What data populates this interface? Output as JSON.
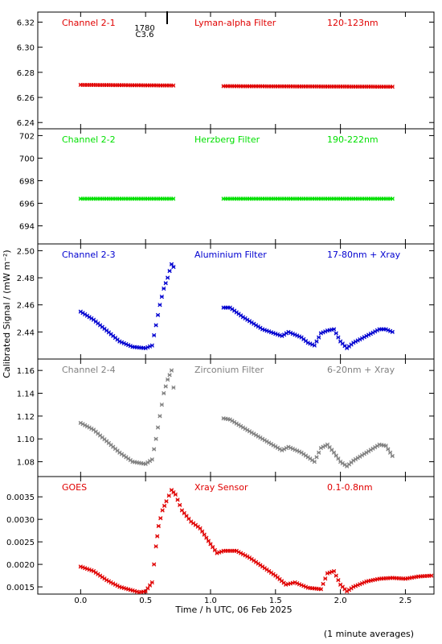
{
  "figure": {
    "ylabel": "Calibrated Signal / (mW m⁻²)",
    "xlabel": "Time / h UTC, 06 Feb 2025",
    "footnote": "(1 minute averages)",
    "marker_annotation": {
      "value": "1780",
      "sub": "C3.6",
      "x": 0.72
    },
    "xlim": [
      -0.33,
      2.72
    ],
    "xticks": [
      "0.0",
      "0.5",
      "1.0",
      "1.5",
      "2.0",
      "2.5"
    ]
  },
  "chart_data": [
    {
      "type": "scatter",
      "channel": "Channel 2-1",
      "filter": "Lyman-alpha Filter",
      "band": "120-123nm",
      "color": "#e00000",
      "ylim": [
        6.235,
        6.328
      ],
      "yticks": [
        "6.24",
        "6.26",
        "6.28",
        "6.30",
        "6.32"
      ],
      "x": [
        0.0,
        0.73,
        1.1,
        2.4
      ],
      "y": [
        6.27,
        6.2695,
        6.269,
        6.2685
      ],
      "gap": [
        0.74,
        1.09
      ]
    },
    {
      "type": "scatter",
      "channel": "Channel 2-2",
      "filter": "Herzberg Filter",
      "band": "190-222nm",
      "color": "#00e000",
      "ylim": [
        692.4,
        702.6
      ],
      "yticks": [
        "694",
        "696",
        "698",
        "700",
        "702"
      ],
      "x": [
        0.0,
        0.73,
        1.1,
        2.4
      ],
      "y": [
        696.4,
        696.4,
        696.4,
        696.4
      ],
      "gap": [
        0.74,
        1.09
      ]
    },
    {
      "type": "scatter",
      "channel": "Channel 2-3",
      "filter": "Aluminium Filter",
      "band": "17-80nm + Xray",
      "color": "#0000d0",
      "ylim": [
        2.42,
        2.505
      ],
      "yticks": [
        "2.44",
        "2.46",
        "2.48",
        "2.50"
      ],
      "x": [
        0.0,
        0.1,
        0.2,
        0.3,
        0.4,
        0.5,
        0.55,
        0.58,
        0.61,
        0.64,
        0.67,
        0.7,
        0.73,
        1.1,
        1.15,
        1.25,
        1.4,
        1.55,
        1.6,
        1.7,
        1.75,
        1.8,
        1.85,
        1.9,
        1.95,
        2.0,
        2.05,
        2.1,
        2.2,
        2.3,
        2.35,
        2.4
      ],
      "y": [
        2.455,
        2.449,
        2.441,
        2.433,
        2.429,
        2.428,
        2.43,
        2.445,
        2.46,
        2.472,
        2.48,
        2.49,
        2.486,
        2.458,
        2.458,
        2.451,
        2.442,
        2.437,
        2.44,
        2.436,
        2.432,
        2.43,
        2.439,
        2.441,
        2.442,
        2.433,
        2.428,
        2.432,
        2.437,
        2.442,
        2.442,
        2.44
      ],
      "gap": [
        0.74,
        1.09
      ]
    },
    {
      "type": "scatter",
      "channel": "Channel 2-4",
      "filter": "Zirconium Filter",
      "band": "6-20nm + Xray",
      "color": "#808080",
      "ylim": [
        1.067,
        1.17
      ],
      "yticks": [
        "1.08",
        "1.10",
        "1.12",
        "1.14",
        "1.16"
      ],
      "x": [
        0.0,
        0.1,
        0.2,
        0.3,
        0.4,
        0.5,
        0.55,
        0.58,
        0.61,
        0.64,
        0.67,
        0.7,
        0.73,
        1.1,
        1.15,
        1.25,
        1.4,
        1.55,
        1.6,
        1.7,
        1.75,
        1.8,
        1.85,
        1.9,
        1.95,
        2.0,
        2.05,
        2.1,
        2.2,
        2.3,
        2.35,
        2.4
      ],
      "y": [
        1.114,
        1.108,
        1.098,
        1.088,
        1.08,
        1.078,
        1.082,
        1.1,
        1.12,
        1.14,
        1.152,
        1.16,
        1.13,
        1.118,
        1.117,
        1.11,
        1.1,
        1.09,
        1.093,
        1.088,
        1.084,
        1.08,
        1.092,
        1.095,
        1.088,
        1.08,
        1.076,
        1.081,
        1.088,
        1.095,
        1.094,
        1.085
      ],
      "gap": [
        0.74,
        1.09
      ]
    },
    {
      "type": "scatter",
      "channel": "GOES",
      "filter": "Xray Sensor",
      "band": "0.1-0.8nm",
      "color": "#e00000",
      "ylim": [
        0.00134,
        0.00395
      ],
      "yticks": [
        "0.0015",
        "0.0020",
        "0.0025",
        "0.0030",
        "0.0035"
      ],
      "x": [
        0.0,
        0.1,
        0.2,
        0.3,
        0.4,
        0.45,
        0.5,
        0.55,
        0.58,
        0.6,
        0.63,
        0.66,
        0.7,
        0.73,
        0.78,
        0.85,
        0.92,
        1.0,
        1.05,
        1.1,
        1.2,
        1.3,
        1.4,
        1.5,
        1.58,
        1.65,
        1.75,
        1.85,
        1.9,
        1.95,
        2.0,
        2.05,
        2.1,
        2.2,
        2.3,
        2.4,
        2.5,
        2.6,
        2.7
      ],
      "y": [
        0.00195,
        0.00185,
        0.00165,
        0.0015,
        0.00142,
        0.00138,
        0.0014,
        0.0016,
        0.0024,
        0.00285,
        0.0032,
        0.0034,
        0.00365,
        0.00355,
        0.0032,
        0.00295,
        0.0028,
        0.00245,
        0.00225,
        0.0023,
        0.0023,
        0.00215,
        0.00195,
        0.00175,
        0.00155,
        0.0016,
        0.00148,
        0.00145,
        0.0018,
        0.00185,
        0.00155,
        0.0014,
        0.0015,
        0.00162,
        0.00168,
        0.0017,
        0.00168,
        0.00173,
        0.00175
      ]
    }
  ]
}
